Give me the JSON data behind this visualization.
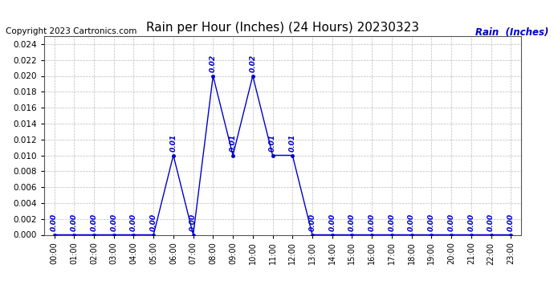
{
  "title": "Rain per Hour (Inches) (24 Hours) 20230323",
  "copyright": "Copyright 2023 Cartronics.com",
  "legend_label": "Rain  (Inches)",
  "hours": [
    0,
    1,
    2,
    3,
    4,
    5,
    6,
    7,
    8,
    9,
    10,
    11,
    12,
    13,
    14,
    15,
    16,
    17,
    18,
    19,
    20,
    21,
    22,
    23
  ],
  "values": [
    0.0,
    0.0,
    0.0,
    0.0,
    0.0,
    0.0,
    0.01,
    0.0,
    0.02,
    0.01,
    0.02,
    0.01,
    0.01,
    0.0,
    0.0,
    0.0,
    0.0,
    0.0,
    0.0,
    0.0,
    0.0,
    0.0,
    0.0,
    0.0
  ],
  "line_color": "#0000cc",
  "point_color": "#0000cc",
  "label_color": "#0000cc",
  "title_color": "#000000",
  "copyright_color": "#000000",
  "legend_color": "#0000cc",
  "background_color": "#ffffff",
  "grid_color": "#bbbbbb",
  "axis_color": "#000000",
  "ylim_min": 0.0,
  "ylim_max": 0.025,
  "ytick_step": 0.002,
  "title_fontsize": 11,
  "label_fontsize": 6.5,
  "copyright_fontsize": 7.5,
  "legend_fontsize": 8.5,
  "point_size": 2.5,
  "line_width": 1.0
}
